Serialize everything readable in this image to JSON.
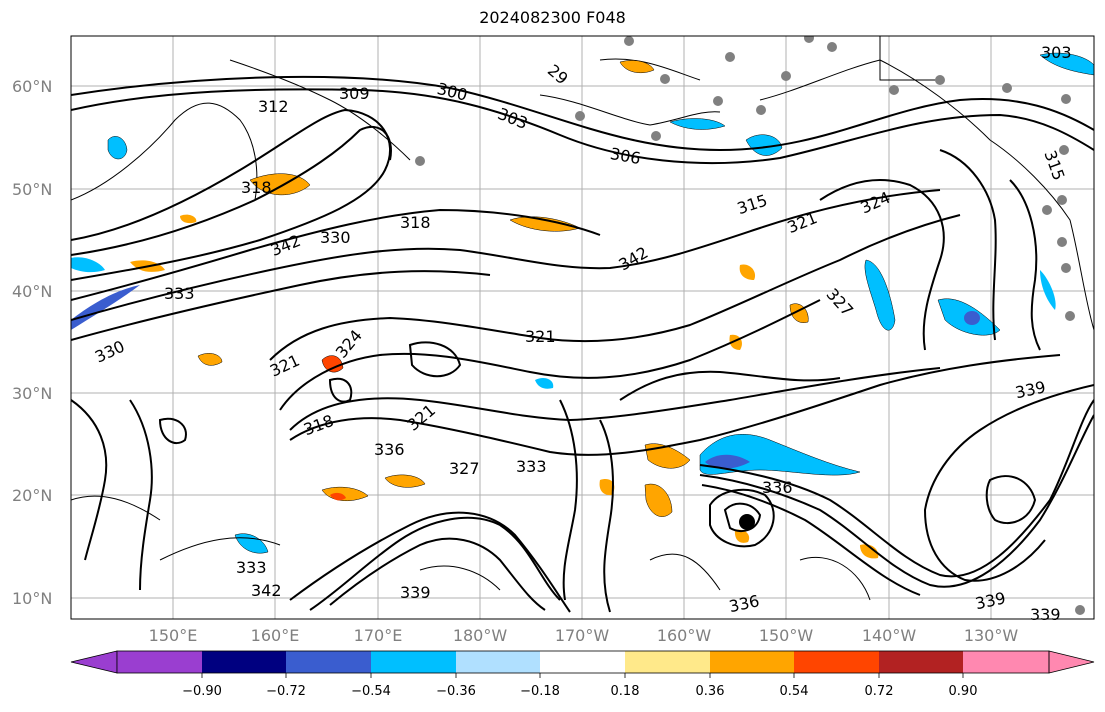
{
  "title": "2024082300 F048",
  "latitude_labels": [
    "60°N",
    "50°N",
    "40°N",
    "30°N",
    "20°N",
    "10°N"
  ],
  "longitude_labels": [
    "150°E",
    "160°E",
    "170°E",
    "180°W",
    "170°W",
    "160°W",
    "150°W",
    "140°W",
    "130°W"
  ],
  "contour_labels": [
    "300",
    "303",
    "306",
    "309",
    "312",
    "315",
    "318",
    "321",
    "324",
    "327",
    "330",
    "333",
    "336",
    "339",
    "342",
    "29",
    "303",
    "315",
    "318",
    "321",
    "324",
    "327",
    "333",
    "336",
    "339",
    "342",
    "318",
    "321",
    "321",
    "330",
    "336",
    "339",
    "342",
    "333",
    "339"
  ],
  "colorbar": {
    "tick_labels": [
      "−0.90",
      "−0.72",
      "−0.54",
      "−0.36",
      "−0.18",
      "0.18",
      "0.36",
      "0.54",
      "0.72",
      "0.90"
    ],
    "colors": [
      "#9a3ed0",
      "#000080",
      "#3a5dcf",
      "#00bfff",
      "#b0e0ff",
      "#ffffff",
      "#ffe98a",
      "#ffa500",
      "#ff4500",
      "#b22222",
      "#ff88b0"
    ]
  },
  "map": {
    "grid": true,
    "extent_lon": [
      "140°E",
      "120°W"
    ],
    "extent_lat": [
      "8°N",
      "65°N"
    ],
    "marker_color_gray": "#808080",
    "marker_color_black": "#000000"
  }
}
